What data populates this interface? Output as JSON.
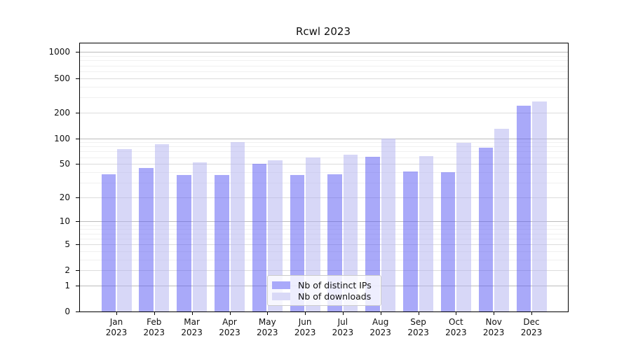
{
  "chart_data": {
    "type": "bar",
    "title": "Rcwl 2023",
    "scale": "log1p",
    "grid": true,
    "legend_position": "bottom-center",
    "categories": [
      "Jan",
      "Feb",
      "Mar",
      "Apr",
      "May",
      "Jun",
      "Jul",
      "Aug",
      "Sep",
      "Oct",
      "Nov",
      "Dec"
    ],
    "category_year": "2023",
    "series": [
      {
        "name": "Nb of distinct IPs",
        "legend_color": "#a9a9fa",
        "fill_color": "rgba(84,84,244,0.5)",
        "values": [
          38,
          45,
          37,
          37,
          50,
          37,
          38,
          61,
          41,
          40,
          78,
          240
        ]
      },
      {
        "name": "Nb of downloads",
        "legend_color": "#d9d9f7",
        "fill_color": "rgba(178,178,240,0.52)",
        "values": [
          75,
          86,
          52,
          90,
          55,
          60,
          64,
          99,
          62,
          88,
          130,
          270
        ]
      }
    ],
    "y_ticks": [
      0,
      1,
      2,
      5,
      10,
      20,
      50,
      100,
      200,
      500,
      1000
    ],
    "y_minor_ticks": [
      3,
      4,
      6,
      7,
      8,
      9,
      30,
      40,
      60,
      70,
      80,
      90,
      300,
      400,
      600,
      700,
      800,
      900
    ],
    "ylim": [
      0,
      1260
    ],
    "colors": {
      "major_grid_power10": "#bcbcbc",
      "major_grid_other": "#dcdcdc",
      "minor_grid": "#f0f0f0",
      "axis": "#000000"
    }
  }
}
